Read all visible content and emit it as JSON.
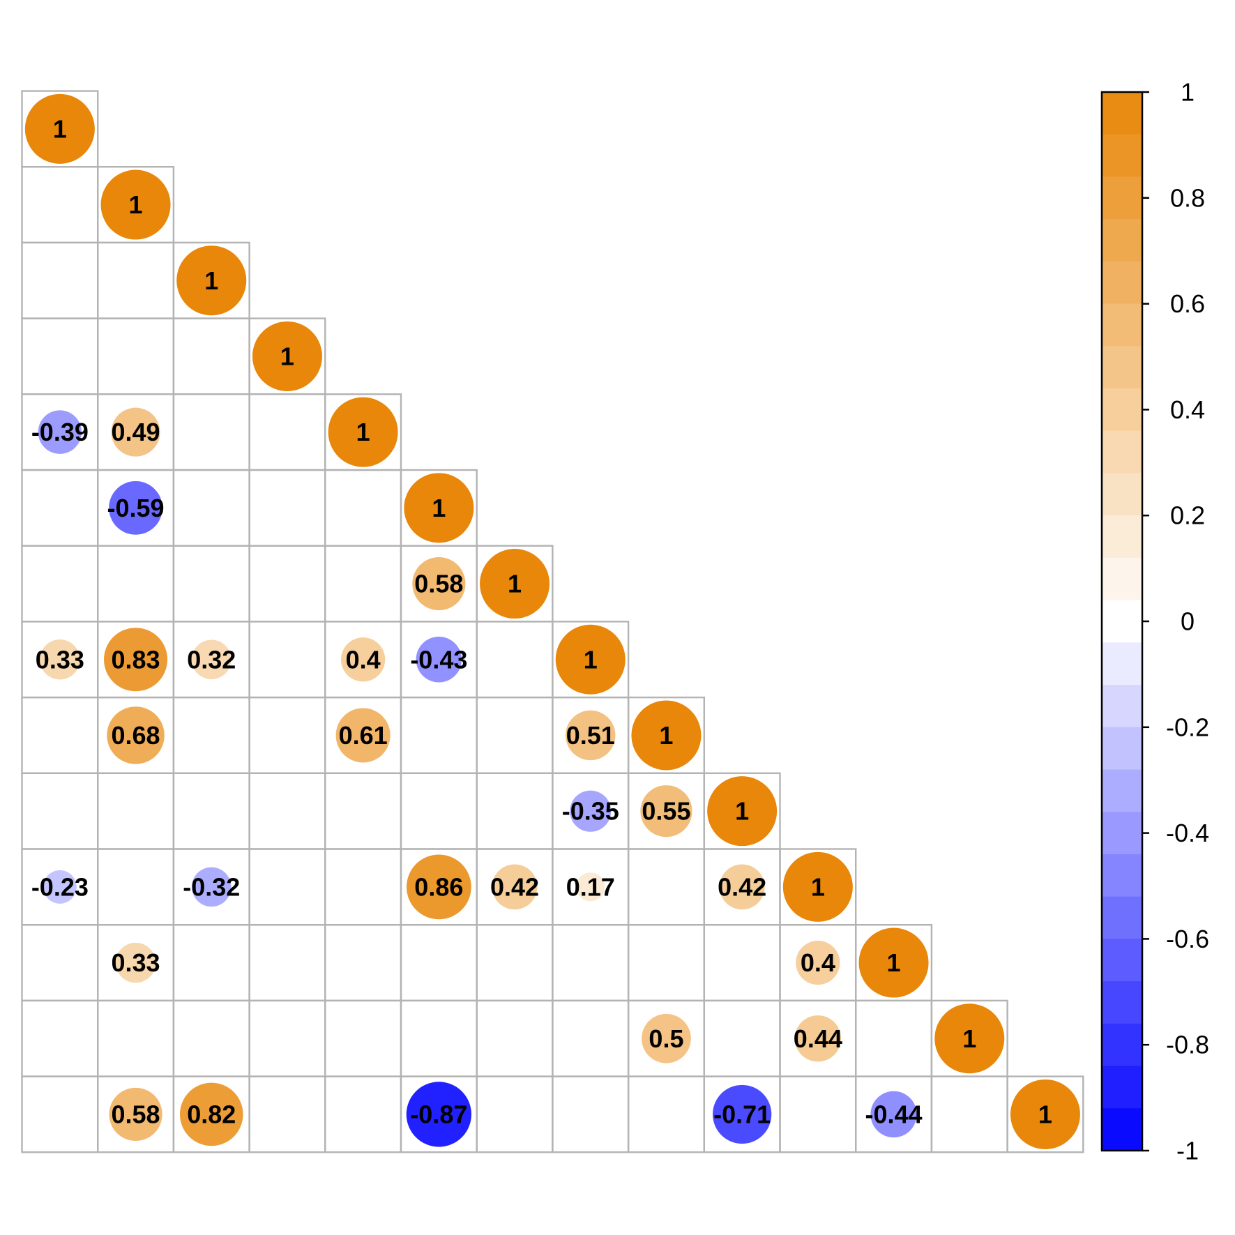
{
  "chart_data": {
    "type": "heatmap",
    "title": "",
    "xlabel": "",
    "ylabel": "",
    "matrix_layout": "lower-triangular",
    "size": 14,
    "cells": [
      {
        "row": 0,
        "col": 0,
        "value": 1
      },
      {
        "row": 1,
        "col": 1,
        "value": 1
      },
      {
        "row": 2,
        "col": 2,
        "value": 1
      },
      {
        "row": 3,
        "col": 3,
        "value": 1
      },
      {
        "row": 4,
        "col": 0,
        "value": -0.39
      },
      {
        "row": 4,
        "col": 1,
        "value": 0.49
      },
      {
        "row": 4,
        "col": 4,
        "value": 1
      },
      {
        "row": 5,
        "col": 1,
        "value": -0.59
      },
      {
        "row": 5,
        "col": 5,
        "value": 1
      },
      {
        "row": 6,
        "col": 5,
        "value": 0.58
      },
      {
        "row": 6,
        "col": 6,
        "value": 1
      },
      {
        "row": 7,
        "col": 0,
        "value": 0.33
      },
      {
        "row": 7,
        "col": 1,
        "value": 0.83
      },
      {
        "row": 7,
        "col": 2,
        "value": 0.32
      },
      {
        "row": 7,
        "col": 4,
        "value": 0.4
      },
      {
        "row": 7,
        "col": 5,
        "value": -0.43
      },
      {
        "row": 7,
        "col": 7,
        "value": 1
      },
      {
        "row": 8,
        "col": 1,
        "value": 0.68
      },
      {
        "row": 8,
        "col": 4,
        "value": 0.61
      },
      {
        "row": 8,
        "col": 7,
        "value": 0.51
      },
      {
        "row": 8,
        "col": 8,
        "value": 1
      },
      {
        "row": 9,
        "col": 7,
        "value": -0.35
      },
      {
        "row": 9,
        "col": 8,
        "value": 0.55
      },
      {
        "row": 9,
        "col": 9,
        "value": 1
      },
      {
        "row": 10,
        "col": 0,
        "value": -0.23
      },
      {
        "row": 10,
        "col": 2,
        "value": -0.32
      },
      {
        "row": 10,
        "col": 5,
        "value": 0.86
      },
      {
        "row": 10,
        "col": 6,
        "value": 0.42
      },
      {
        "row": 10,
        "col": 7,
        "value": 0.17
      },
      {
        "row": 10,
        "col": 9,
        "value": 0.42
      },
      {
        "row": 10,
        "col": 10,
        "value": 1
      },
      {
        "row": 11,
        "col": 1,
        "value": 0.33
      },
      {
        "row": 11,
        "col": 10,
        "value": 0.4
      },
      {
        "row": 11,
        "col": 11,
        "value": 1
      },
      {
        "row": 12,
        "col": 8,
        "value": 0.5
      },
      {
        "row": 12,
        "col": 10,
        "value": 0.44
      },
      {
        "row": 12,
        "col": 12,
        "value": 1
      },
      {
        "row": 13,
        "col": 1,
        "value": 0.58
      },
      {
        "row": 13,
        "col": 2,
        "value": 0.82
      },
      {
        "row": 13,
        "col": 5,
        "value": -0.87
      },
      {
        "row": 13,
        "col": 9,
        "value": -0.71
      },
      {
        "row": 13,
        "col": 11,
        "value": -0.44
      },
      {
        "row": 13,
        "col": 13,
        "value": 1
      }
    ],
    "colorbar": {
      "range": [
        -1,
        1
      ],
      "ticks": [
        {
          "value": 1,
          "label": "1"
        },
        {
          "value": 0.8,
          "label": "0.8"
        },
        {
          "value": 0.6,
          "label": "0.6"
        },
        {
          "value": 0.4,
          "label": "0.4"
        },
        {
          "value": 0.2,
          "label": "0.2"
        },
        {
          "value": 0,
          "label": "0"
        },
        {
          "value": -0.2,
          "label": "-0.2"
        },
        {
          "value": -0.4,
          "label": "-0.4"
        },
        {
          "value": -0.6,
          "label": "-0.6"
        },
        {
          "value": -0.8,
          "label": "-0.8"
        },
        {
          "value": -1,
          "label": "-1"
        }
      ],
      "steps": 25
    },
    "colors": {
      "positive": "#E8870A",
      "neutral": "#FFFFFF",
      "negative": "#0000FF",
      "grid": "#B3B3B3"
    }
  }
}
